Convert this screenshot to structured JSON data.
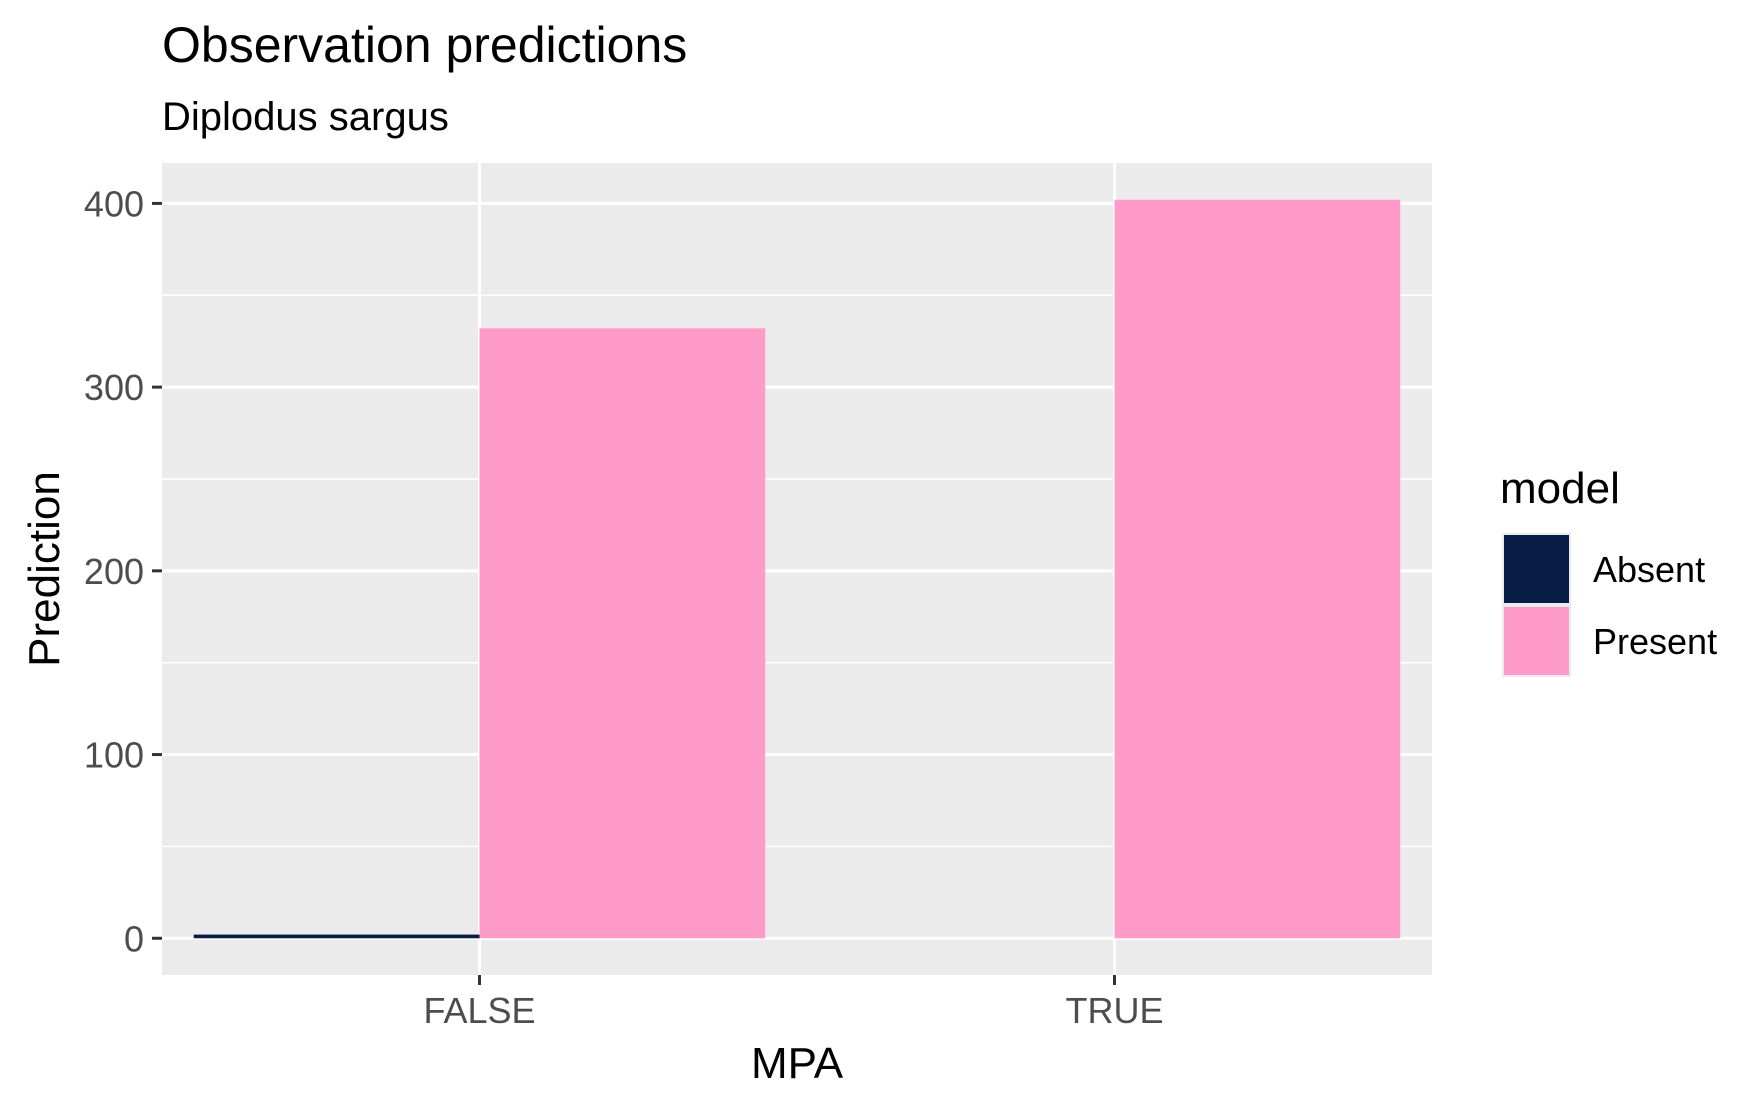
{
  "chart_data": {
    "type": "bar",
    "title": "Observation predictions",
    "subtitle": "Diplodus sargus",
    "xlabel": "MPA",
    "ylabel": "Prediction",
    "categories": [
      "FALSE",
      "TRUE"
    ],
    "series": [
      {
        "name": "Absent",
        "color": "#081d45",
        "values": [
          2,
          0
        ]
      },
      {
        "name": "Present",
        "color": "#ff9bc9",
        "values": [
          332,
          402
        ]
      }
    ],
    "ylim": [
      -20,
      422
    ],
    "yticks": [
      0,
      100,
      200,
      300,
      400
    ],
    "ytick_labels": [
      "0",
      "100",
      "200",
      "300",
      "400"
    ],
    "grid": true,
    "legend": {
      "title": "model",
      "position": "right",
      "entries": [
        "Absent",
        "Present"
      ]
    },
    "panel_color": "#ebebeb",
    "grid_color": "#ffffff"
  }
}
